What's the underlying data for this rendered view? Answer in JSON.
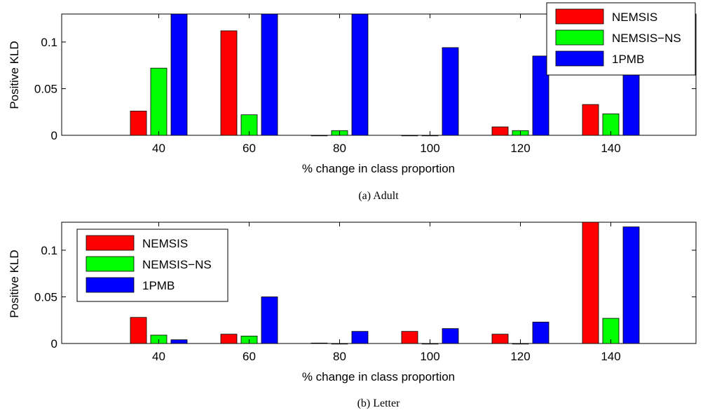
{
  "colors": {
    "NEMSIS": "#ff0000",
    "NEMSIS-NS": "#00ff00",
    "1PMB": "#0000ff"
  },
  "chart_data": [
    {
      "type": "bar",
      "caption": "(a)  Adult",
      "xlabel": "% change in class proportion",
      "ylabel": "Positive KLD",
      "categories": [
        "40",
        "60",
        "80",
        "100",
        "120",
        "140"
      ],
      "ylim": [
        0,
        0.13
      ],
      "yticks": [
        "0",
        "0.05",
        "0.1"
      ],
      "legend_position": "top-right",
      "series": [
        {
          "name": "NEMSIS",
          "values": [
            0.026,
            0.112,
            0,
            0,
            0.009,
            0.033
          ]
        },
        {
          "name": "NEMSIS−NS",
          "values": [
            0.072,
            0.022,
            0.005,
            0,
            0.005,
            0.023
          ]
        },
        {
          "name": "1PMB",
          "values": [
            0.13,
            0.13,
            0.13,
            0.094,
            0.085,
            0.086
          ]
        }
      ]
    },
    {
      "type": "bar",
      "caption": "(b)  Letter",
      "xlabel": "% change in class proportion",
      "ylabel": "Positive KLD",
      "categories": [
        "40",
        "60",
        "80",
        "100",
        "120",
        "140"
      ],
      "ylim": [
        0,
        0.13
      ],
      "yticks": [
        "0",
        "0.05",
        "0.1"
      ],
      "legend_position": "top-left",
      "series": [
        {
          "name": "NEMSIS",
          "values": [
            0.028,
            0.01,
            0.0005,
            0.013,
            0.01,
            0.13
          ]
        },
        {
          "name": "NEMSIS−NS",
          "values": [
            0.009,
            0.008,
            0,
            0,
            0,
            0.027
          ]
        },
        {
          "name": "1PMB",
          "values": [
            0.004,
            0.05,
            0.013,
            0.016,
            0.023,
            0.125
          ]
        }
      ]
    }
  ]
}
